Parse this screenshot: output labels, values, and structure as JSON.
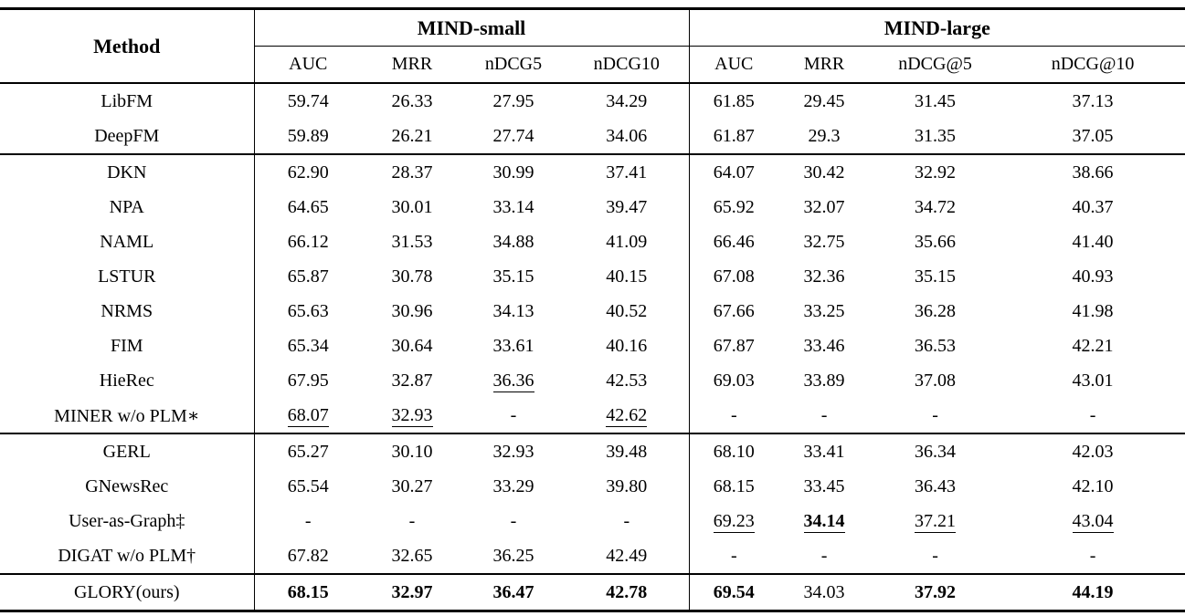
{
  "table": {
    "header": {
      "method": "Method",
      "small": {
        "label": "MIND-small",
        "cols": [
          "AUC",
          "MRR",
          "nDCG5",
          "nDCG10"
        ]
      },
      "large": {
        "label": "MIND-large",
        "cols": [
          "AUC",
          "MRR",
          "nDCG@5",
          "nDCG@10"
        ]
      }
    },
    "groups": [
      {
        "rows": [
          {
            "method": "LibFM",
            "cells": [
              "59.74",
              "26.33",
              "27.95",
              "34.29",
              "61.85",
              "29.45",
              "31.45",
              "37.13"
            ]
          },
          {
            "method": "DeepFM",
            "cells": [
              "59.89",
              "26.21",
              "27.74",
              "34.06",
              "61.87",
              "29.3",
              "31.35",
              "37.05"
            ]
          }
        ]
      },
      {
        "rows": [
          {
            "method": "DKN",
            "cells": [
              "62.90",
              "28.37",
              "30.99",
              "37.41",
              "64.07",
              "30.42",
              "32.92",
              "38.66"
            ]
          },
          {
            "method": "NPA",
            "cells": [
              "64.65",
              "30.01",
              "33.14",
              "39.47",
              "65.92",
              "32.07",
              "34.72",
              "40.37"
            ]
          },
          {
            "method": "NAML",
            "cells": [
              "66.12",
              "31.53",
              "34.88",
              "41.09",
              "66.46",
              "32.75",
              "35.66",
              "41.40"
            ]
          },
          {
            "method": "LSTUR",
            "cells": [
              "65.87",
              "30.78",
              "35.15",
              "40.15",
              "67.08",
              "32.36",
              "35.15",
              "40.93"
            ]
          },
          {
            "method": "NRMS",
            "cells": [
              "65.63",
              "30.96",
              "34.13",
              "40.52",
              "67.66",
              "33.25",
              "36.28",
              "41.98"
            ]
          },
          {
            "method": "FIM",
            "cells": [
              "65.34",
              "30.64",
              "33.61",
              "40.16",
              "67.87",
              "33.46",
              "36.53",
              "42.21"
            ]
          },
          {
            "method": "HieRec",
            "cells": [
              "67.95",
              "32.87",
              {
                "v": "36.36",
                "u": true
              },
              "42.53",
              "69.03",
              "33.89",
              "37.08",
              "43.01"
            ]
          },
          {
            "method": "MINER w/o PLM∗",
            "cells": [
              {
                "v": "68.07",
                "u": true
              },
              {
                "v": "32.93",
                "u": true
              },
              "-",
              {
                "v": "42.62",
                "u": true
              },
              "-",
              "-",
              "-",
              "-"
            ]
          }
        ]
      },
      {
        "rows": [
          {
            "method": "GERL",
            "cells": [
              "65.27",
              "30.10",
              "32.93",
              "39.48",
              "68.10",
              "33.41",
              "36.34",
              "42.03"
            ]
          },
          {
            "method": "GNewsRec",
            "cells": [
              "65.54",
              "30.27",
              "33.29",
              "39.80",
              "68.15",
              "33.45",
              "36.43",
              "42.10"
            ]
          },
          {
            "method": "User-as-Graph‡",
            "cells": [
              "-",
              "-",
              "-",
              "-",
              {
                "v": "69.23",
                "u": true
              },
              {
                "v": "34.14",
                "b": true,
                "u": true
              },
              {
                "v": "37.21",
                "u": true
              },
              {
                "v": "43.04",
                "u": true
              }
            ]
          },
          {
            "method": "DIGAT w/o PLM†",
            "cells": [
              "67.82",
              "32.65",
              "36.25",
              "42.49",
              "-",
              "-",
              "-",
              "-"
            ]
          }
        ]
      },
      {
        "rows": [
          {
            "method": "GLORY(ours)",
            "cells": [
              {
                "v": "68.15",
                "b": true
              },
              {
                "v": "32.97",
                "b": true
              },
              {
                "v": "36.47",
                "b": true
              },
              {
                "v": "42.78",
                "b": true
              },
              {
                "v": "69.54",
                "b": true
              },
              "34.03",
              {
                "v": "37.92",
                "b": true
              },
              {
                "v": "44.19",
                "b": true
              }
            ]
          }
        ]
      }
    ]
  }
}
